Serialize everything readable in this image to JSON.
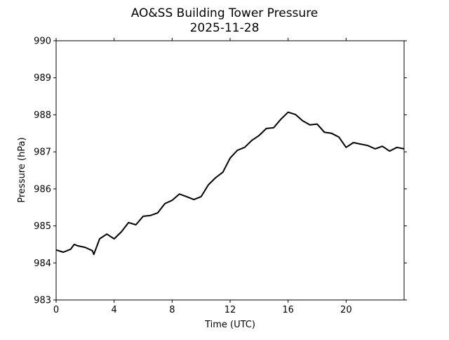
{
  "chart_data": {
    "type": "line",
    "title": "AO&SS Building Tower Pressure",
    "subtitle": "2025-11-28",
    "xlabel": "Time (UTC)",
    "ylabel": "Pressure (hPa)",
    "xlim": [
      0,
      24
    ],
    "ylim": [
      983,
      990
    ],
    "xticks": [
      0,
      4,
      8,
      12,
      16,
      20
    ],
    "xtick_labels": [
      "0",
      "4",
      "8",
      "12",
      "16",
      "20"
    ],
    "yticks": [
      983,
      984,
      985,
      986,
      987,
      988,
      989,
      990
    ],
    "ytick_labels": [
      "983",
      "984",
      "985",
      "986",
      "987",
      "988",
      "989",
      "990"
    ],
    "grid": false,
    "line_color": "#000000",
    "series": [
      {
        "name": "Pressure",
        "x": [
          0,
          0.5,
          1,
          1.25,
          1.5,
          2,
          2.5,
          2.6,
          3,
          3.5,
          4,
          4.5,
          5,
          5.5,
          6,
          6.5,
          7,
          7.5,
          8,
          8.5,
          9,
          9.5,
          10,
          10.5,
          11,
          11.5,
          12,
          12.5,
          13,
          13.5,
          14,
          14.5,
          15,
          15.5,
          16,
          16.5,
          17,
          17.5,
          18,
          18.5,
          19,
          19.5,
          20,
          20.5,
          21,
          21.5,
          22,
          22.5,
          23,
          23.5,
          24
        ],
        "y": [
          984.35,
          984.29,
          984.37,
          984.5,
          984.46,
          984.42,
          984.33,
          984.23,
          984.65,
          984.78,
          984.65,
          984.84,
          985.09,
          985.03,
          985.26,
          985.28,
          985.35,
          985.6,
          985.69,
          985.86,
          985.79,
          985.71,
          985.79,
          986.11,
          986.3,
          986.45,
          986.83,
          987.04,
          987.12,
          987.31,
          987.44,
          987.63,
          987.65,
          987.88,
          988.07,
          988.01,
          987.84,
          987.73,
          987.75,
          987.53,
          987.5,
          987.4,
          987.12,
          987.25,
          987.21,
          987.17,
          987.08,
          987.15,
          987.02,
          987.12,
          987.08
        ]
      }
    ]
  }
}
